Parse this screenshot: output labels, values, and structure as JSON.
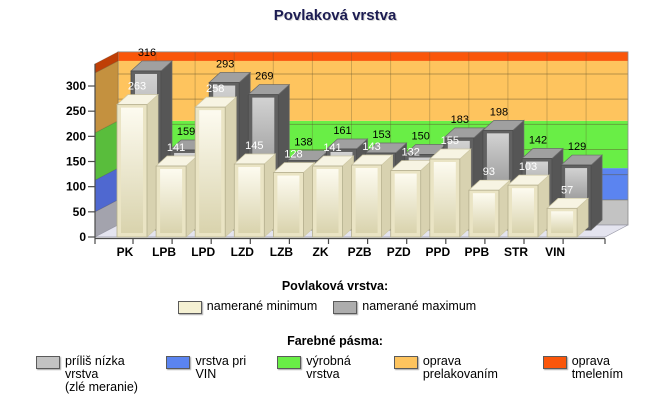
{
  "title": "Povlaková vrstva",
  "chart_data": {
    "type": "bar",
    "projection": "3d",
    "title": "Povlaková vrstva",
    "categories": [
      "PK",
      "LPB",
      "LPD",
      "LZD",
      "LZB",
      "ZK",
      "PZB",
      "PZD",
      "PPD",
      "PPB",
      "STR",
      "VIN"
    ],
    "series": [
      {
        "name": "namerané minimum",
        "color": "#f5f1d3",
        "label_color": "#ffffff",
        "values": [
          263,
          141,
          258,
          145,
          128,
          141,
          143,
          132,
          155,
          93,
          103,
          57
        ]
      },
      {
        "name": "namerané maximum",
        "color": "#adadad",
        "label_color": "#000000",
        "values": [
          316,
          159,
          293,
          269,
          138,
          161,
          153,
          150,
          183,
          198,
          142,
          129
        ]
      }
    ],
    "y_axis": {
      "min": 0,
      "max": 344,
      "tick_step": 50,
      "ticks": [
        0,
        50,
        100,
        150,
        200,
        250,
        300
      ]
    },
    "x_axis": {
      "label_color": "#000000"
    },
    "bands": [
      {
        "label": "príliš nízka vrstva (zlé meranie)",
        "from": 0,
        "to": 50,
        "color": "#c3c3c3",
        "wall_color": "#a3a3ad"
      },
      {
        "label": "vrstva pri VIN",
        "from": 50,
        "to": 113,
        "color": "#5b84f0",
        "wall_color": "#4f68d0"
      },
      {
        "label": "výrobná vrstva",
        "from": 113,
        "to": 207,
        "color": "#69ee46",
        "wall_color": "#59bd3c"
      },
      {
        "label": "oprava prelakovaním",
        "from": 207,
        "to": 326,
        "color": "#fec45e",
        "wall_color": "#c4913f"
      },
      {
        "label": "oprava tmelením",
        "from": 326,
        "to": 344,
        "color": "#fa560a",
        "wall_color": "#bf3f06"
      }
    ],
    "grid": true,
    "legend_position": "bottom"
  },
  "legend_series": {
    "header": "Povlaková vrstva:",
    "items": [
      {
        "label": "namerané minimum",
        "color": "#f5f1d3"
      },
      {
        "label": "namerané maximum",
        "color": "#adadad"
      }
    ]
  },
  "legend_bands": {
    "header": "Farebné pásma:",
    "items": [
      {
        "label": "príliš nízka vrstva\n(zlé meranie)",
        "color": "#c3c3c3"
      },
      {
        "label": "vrstva pri VIN",
        "color": "#5b84f0"
      },
      {
        "label": "výrobná vrstva",
        "color": "#69ee46"
      },
      {
        "label": "oprava prelakovaním",
        "color": "#fec45e"
      },
      {
        "label": "oprava tmelením",
        "color": "#fa560a"
      }
    ]
  }
}
